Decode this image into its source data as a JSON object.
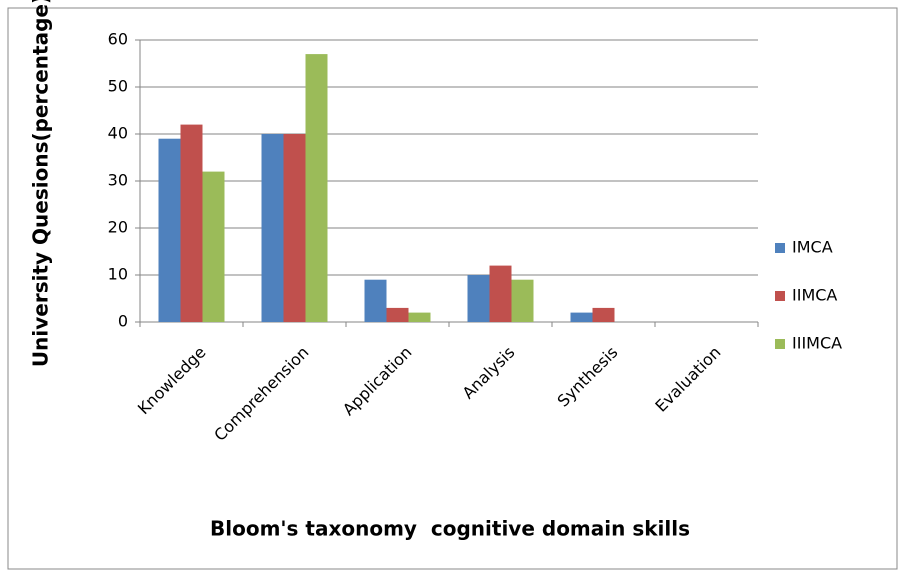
{
  "chart_data": {
    "type": "bar",
    "categories": [
      "Knowledge",
      "Comprehension",
      "Application",
      "Analysis",
      "Synthesis",
      "Evaluation"
    ],
    "series": [
      {
        "name": "IMCA",
        "color": "#4f81bd",
        "values": [
          39,
          40,
          9,
          10,
          2,
          0
        ]
      },
      {
        "name": "IIMCA",
        "color": "#c0504d",
        "values": [
          42,
          40,
          3,
          12,
          3,
          0
        ]
      },
      {
        "name": "IIIMCA",
        "color": "#9bbb59",
        "values": [
          32,
          57,
          2,
          9,
          0,
          0
        ]
      }
    ],
    "ylim": [
      0,
      60
    ],
    "yticks": [
      0,
      10,
      20,
      30,
      40,
      50,
      60
    ],
    "grid": true,
    "xlabel": "Bloom's taxonomy  cognitive domain skills",
    "ylabel": "University Quesions(percentage)",
    "legend": "right"
  }
}
